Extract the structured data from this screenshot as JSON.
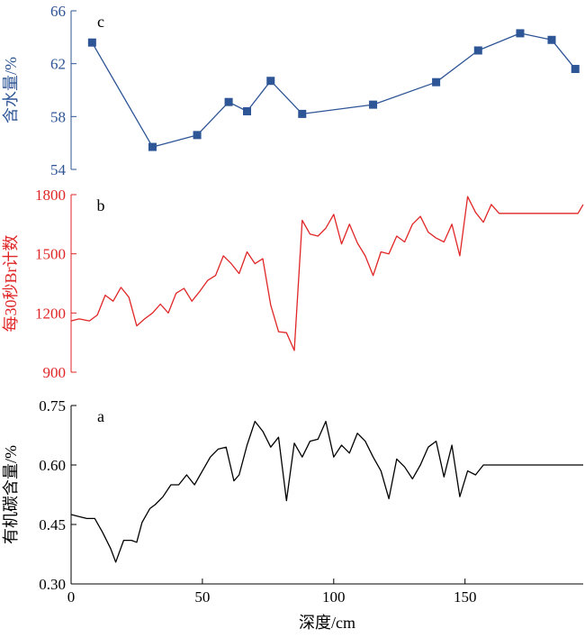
{
  "chart_data": [
    {
      "type": "line",
      "panel_label": "c",
      "ylabel": "含水量/%",
      "ylim": [
        54,
        66
      ],
      "yticks": [
        54,
        58,
        62,
        66
      ],
      "color": "#2E5596",
      "marker": "square",
      "x": [
        8,
        31,
        48,
        60,
        67,
        76,
        88,
        115,
        139,
        155,
        171,
        183,
        192
      ],
      "y": [
        63.6,
        55.7,
        56.6,
        59.1,
        58.4,
        60.7,
        58.2,
        58.9,
        60.6,
        63.0,
        64.3,
        63.8,
        61.6
      ]
    },
    {
      "type": "line",
      "panel_label": "b",
      "ylabel": "每30秒Br计数",
      "ylim": [
        900,
        1800
      ],
      "yticks": [
        900,
        1200,
        1500,
        1800
      ],
      "color": "#E02626",
      "x": [
        0,
        3,
        7,
        10,
        13,
        16,
        19,
        22,
        25,
        28,
        31,
        34,
        37,
        40,
        43,
        46,
        49,
        52,
        55,
        58,
        61,
        64,
        67,
        70,
        73,
        76,
        79,
        82,
        85,
        88,
        91,
        94,
        97,
        100,
        103,
        106,
        109,
        112,
        115,
        118,
        121,
        124,
        127,
        130,
        133,
        136,
        139,
        142,
        145,
        148,
        151,
        154,
        157,
        160,
        163,
        166,
        169,
        172,
        175,
        178,
        181,
        184,
        187,
        190,
        193,
        195
      ],
      "y": [
        1160,
        1170,
        1160,
        1190,
        1290,
        1260,
        1330,
        1280,
        1135,
        1170,
        1200,
        1245,
        1200,
        1300,
        1325,
        1260,
        1310,
        1365,
        1390,
        1490,
        1450,
        1400,
        1510,
        1450,
        1475,
        1240,
        1105,
        1100,
        1010,
        1670,
        1600,
        1590,
        1630,
        1700,
        1550,
        1650,
        1555,
        1490,
        1390,
        1510,
        1500,
        1590,
        1560,
        1650,
        1690,
        1610,
        1580,
        1560,
        1650,
        1490,
        1790,
        1710,
        1660,
        1750,
        1705,
        1705,
        1705,
        1705,
        1705,
        1705,
        1705,
        1705,
        1705,
        1705,
        1705,
        1750
      ]
    },
    {
      "type": "line",
      "panel_label": "a",
      "ylabel": "有机碳含量/%",
      "ylim": [
        0.3,
        0.75
      ],
      "yticks": [
        0.3,
        0.45,
        0.6,
        0.75
      ],
      "ytick_labels": [
        "0.30",
        "0.45",
        "0.60",
        "0.75"
      ],
      "color": "#000000",
      "x": [
        0,
        3,
        6,
        9,
        12,
        15,
        17,
        20,
        23,
        25,
        27,
        30,
        32,
        35,
        38,
        41,
        44,
        47,
        50,
        53,
        56,
        59,
        62,
        64,
        67,
        70,
        73,
        76,
        79,
        82,
        85,
        88,
        91,
        94,
        97,
        100,
        103,
        106,
        109,
        112,
        115,
        118,
        121,
        124,
        127,
        130,
        133,
        136,
        139,
        142,
        145,
        148,
        151,
        154,
        157,
        160,
        163,
        166,
        169,
        172,
        175,
        178,
        181,
        184,
        187,
        190,
        193,
        195
      ],
      "y": [
        0.475,
        0.47,
        0.465,
        0.465,
        0.43,
        0.39,
        0.355,
        0.41,
        0.41,
        0.405,
        0.455,
        0.49,
        0.5,
        0.52,
        0.55,
        0.55,
        0.575,
        0.55,
        0.585,
        0.62,
        0.64,
        0.645,
        0.56,
        0.575,
        0.65,
        0.71,
        0.685,
        0.645,
        0.67,
        0.51,
        0.655,
        0.62,
        0.66,
        0.665,
        0.71,
        0.62,
        0.65,
        0.63,
        0.68,
        0.66,
        0.62,
        0.585,
        0.515,
        0.615,
        0.595,
        0.565,
        0.6,
        0.645,
        0.66,
        0.57,
        0.65,
        0.52,
        0.585,
        0.575,
        0.6,
        0.6,
        0.6,
        0.6,
        0.6,
        0.6,
        0.6,
        0.6,
        0.6,
        0.6,
        0.6,
        0.6,
        0.6,
        0.6
      ]
    }
  ],
  "x_axis": {
    "xlabel": "深度/cm",
    "xlim": [
      0,
      195
    ],
    "xticks": [
      0,
      50,
      100,
      150
    ],
    "xtick_labels": [
      "0",
      "50",
      "100",
      "150"
    ]
  }
}
